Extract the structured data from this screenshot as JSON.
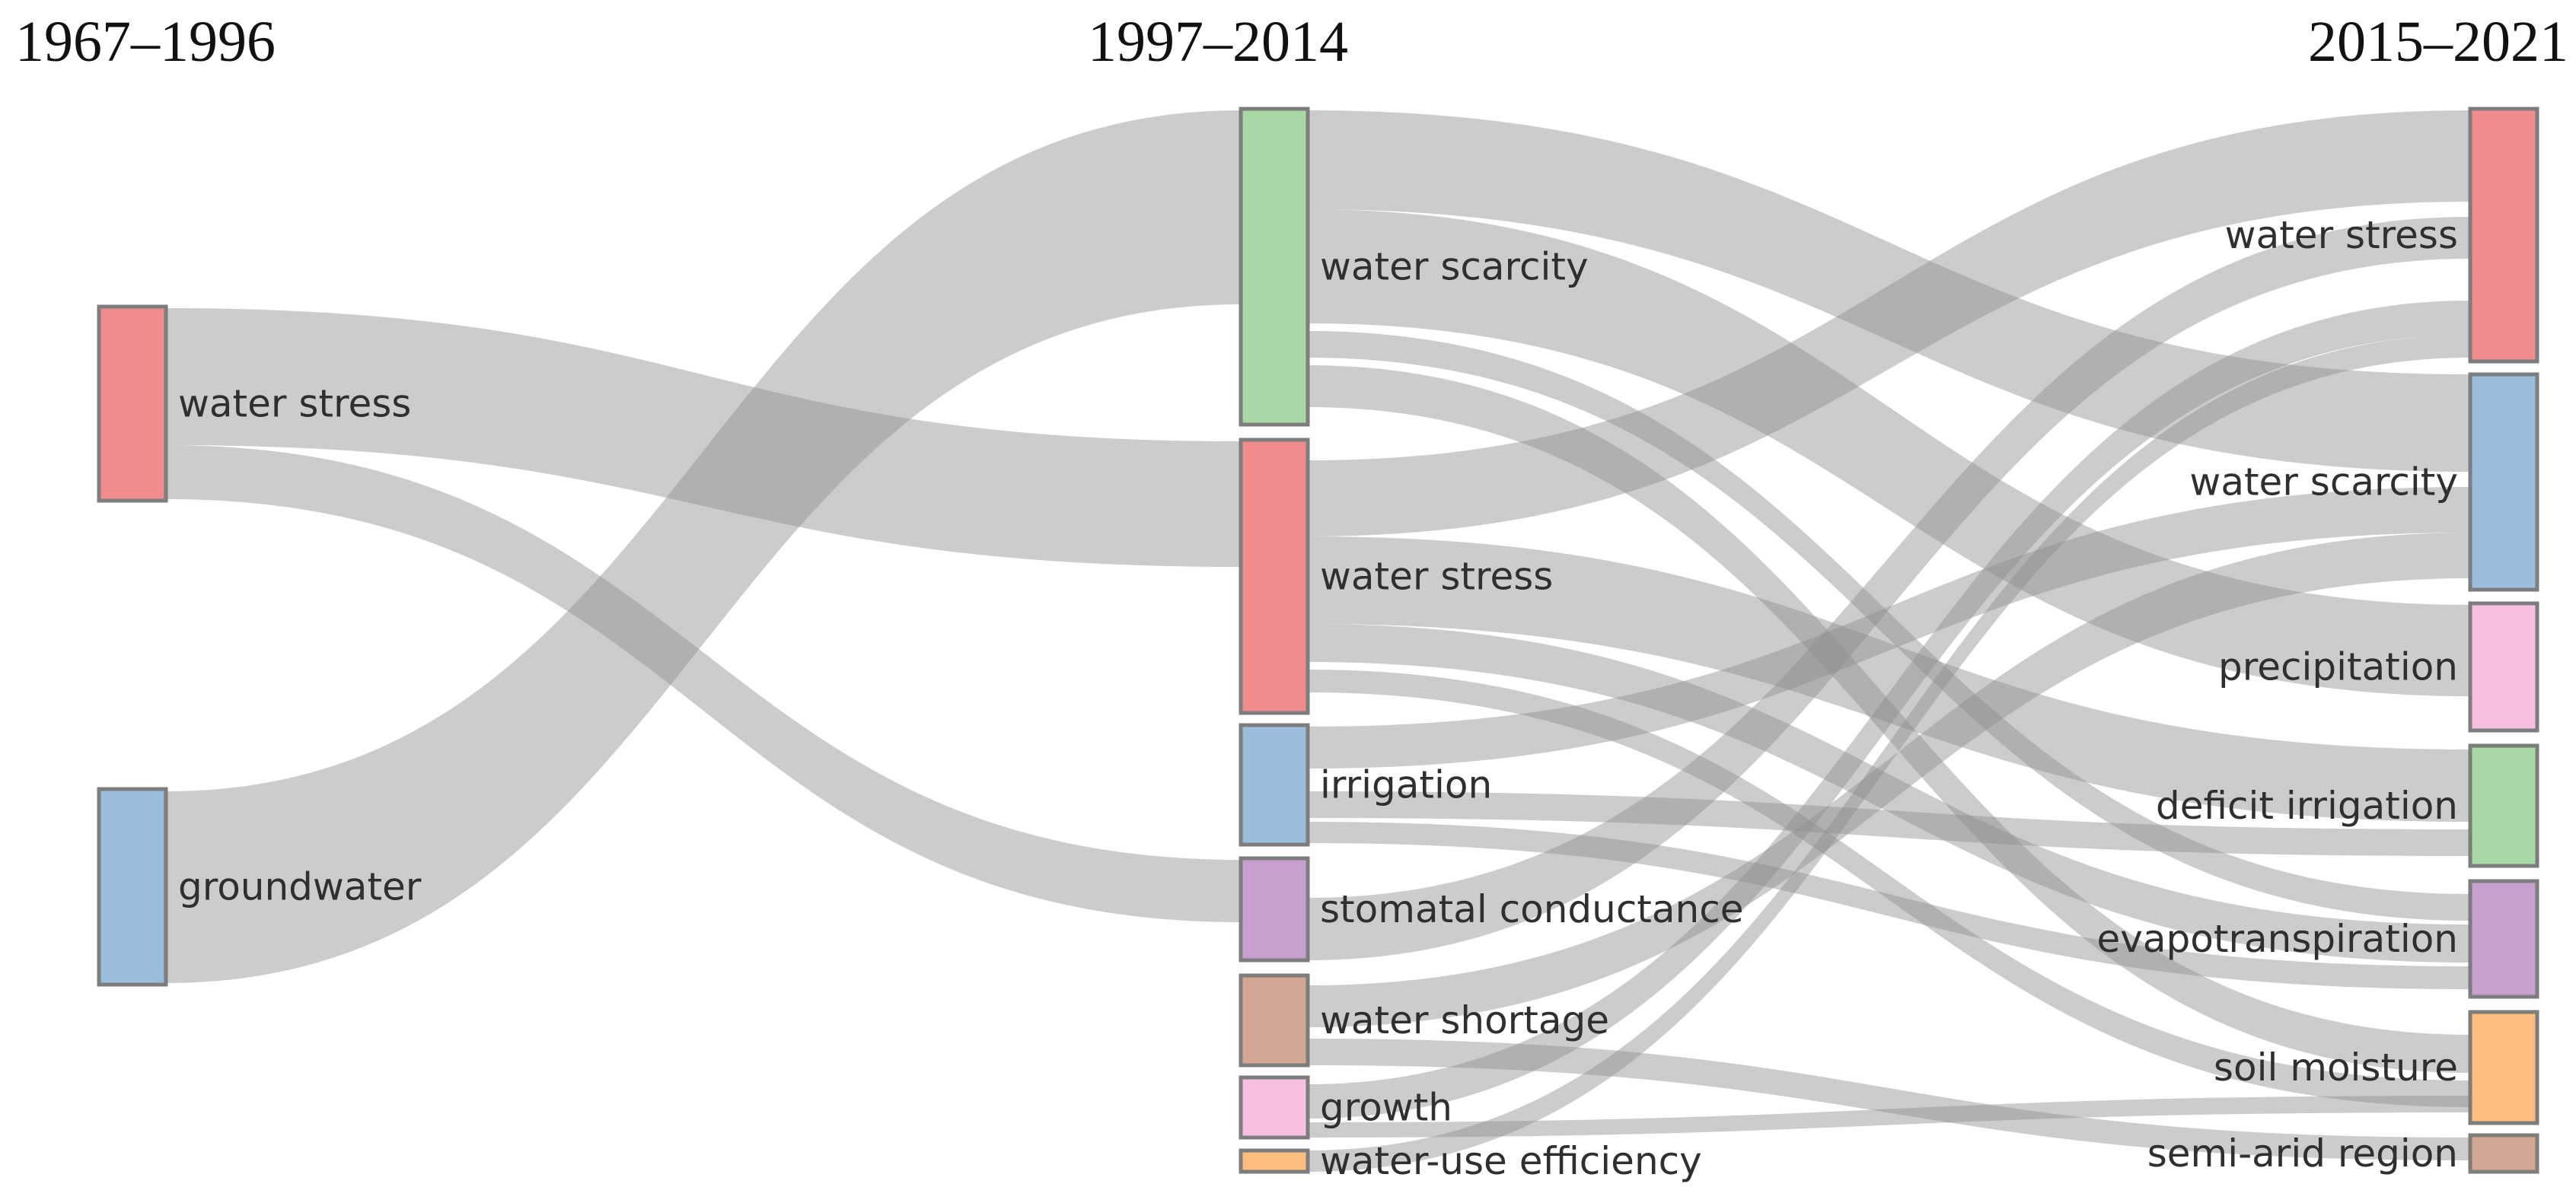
{
  "colors": {
    "red": "#F08C8C",
    "blue": "#9ABDDB",
    "green": "#A8D8A4",
    "purple": "#C7A0D0",
    "brown": "#D4A793",
    "pink": "#F9BFE0",
    "orange": "#FEBD7D",
    "link": "#8f8f8f"
  },
  "periods": [
    "1967–1996",
    "1997–2014",
    "2015–2021"
  ],
  "columns": [
    {
      "period": "1967–1996",
      "nodes": [
        {
          "id": "a-water-stress",
          "label": "water stress",
          "color": "red"
        },
        {
          "id": "a-groundwater",
          "label": "groundwater",
          "color": "blue"
        }
      ]
    },
    {
      "period": "1997–2014",
      "nodes": [
        {
          "id": "b-water-scarcity",
          "label": "water scarcity",
          "color": "green"
        },
        {
          "id": "b-water-stress",
          "label": "water stress",
          "color": "red"
        },
        {
          "id": "b-irrigation",
          "label": "irrigation",
          "color": "blue"
        },
        {
          "id": "b-stomatal-conductance",
          "label": "stomatal conductance",
          "color": "purple"
        },
        {
          "id": "b-water-shortage",
          "label": "water shortage",
          "color": "brown"
        },
        {
          "id": "b-growth",
          "label": "growth",
          "color": "pink"
        },
        {
          "id": "b-water-use-efficiency",
          "label": "water-use efficiency",
          "color": "orange"
        }
      ]
    },
    {
      "period": "2015–2021",
      "nodes": [
        {
          "id": "c-water-stress",
          "label": "water stress",
          "color": "red"
        },
        {
          "id": "c-water-scarcity",
          "label": "water scarcity",
          "color": "blue"
        },
        {
          "id": "c-precipitation",
          "label": "precipitation",
          "color": "pink"
        },
        {
          "id": "c-deficit-irrigation",
          "label": "deficit irrigation",
          "color": "green"
        },
        {
          "id": "c-evapotranspiration",
          "label": "evapotranspiration",
          "color": "purple"
        },
        {
          "id": "c-soil-moisture",
          "label": "soil moisture",
          "color": "orange"
        },
        {
          "id": "c-semi-arid-region",
          "label": "semi-arid region",
          "color": "brown"
        }
      ]
    }
  ]
}
